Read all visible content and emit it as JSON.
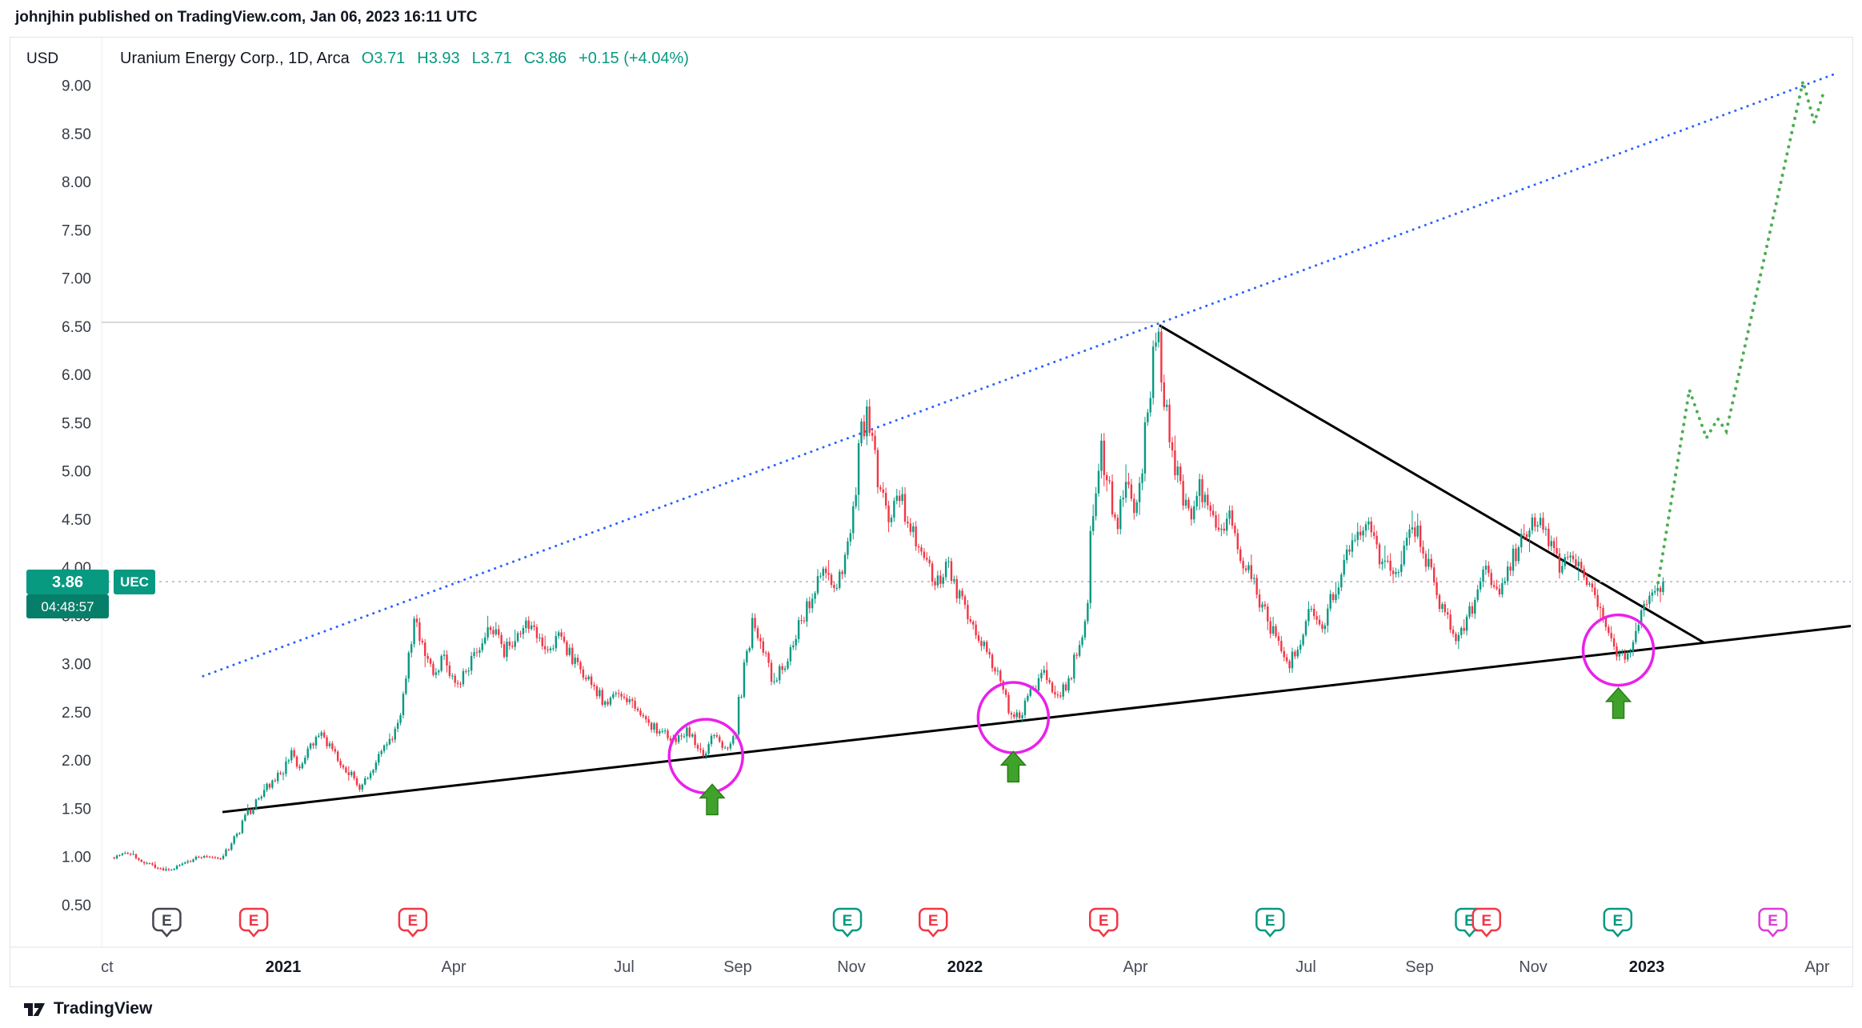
{
  "header": {
    "published_line": "johnjhin published on TradingView.com, Jan 06, 2023 16:11 UTC"
  },
  "legend": {
    "currency": "USD",
    "title": "Uranium Energy Corp., 1D, Arca",
    "open": "O3.71",
    "high": "H3.93",
    "low": "L3.71",
    "close": "C3.86",
    "change": "+0.15 (+4.04%)"
  },
  "price_scale": {
    "current_price": "3.86",
    "countdown": "04:48:57",
    "symbol_badge": "UEC"
  },
  "footer": {
    "brand": "TradingView"
  },
  "colors": {
    "up": "#089981",
    "down": "#f23645",
    "trend_blue": "#2962ff",
    "trend_black": "#000000",
    "peak_line": "#c9ccd3",
    "projection_green": "#4caf50",
    "circle_magenta": "#ea21ea",
    "arrow_green": "#3fa32b",
    "arrow_edge": "#2b7c16",
    "badge_teal": "#089981",
    "badge_teal_dark": "#077e6a",
    "axis_text": "#363a45",
    "month_text": "#4a4e59",
    "year_text": "#131722",
    "grid": "#e0e3eb",
    "price_line": "#b2b5be"
  },
  "chart_data": {
    "type": "candlestick",
    "title": "Uranium Energy Corp.",
    "symbol": "UEC",
    "exchange": "Arca",
    "interval": "1D",
    "currency": "USD",
    "last": {
      "o": 3.71,
      "h": 3.93,
      "l": 3.71,
      "c": 3.86,
      "change": "+0.15",
      "change_pct": "+4.04%"
    },
    "y_axis": {
      "min": 0.5,
      "max": 9.0,
      "step": 0.5
    },
    "current_price_line": 3.86,
    "x_labels": [
      {
        "label": "ct",
        "m": -0.1,
        "bold": false
      },
      {
        "label": "2021",
        "m": 3,
        "bold": true
      },
      {
        "label": "Apr",
        "m": 6,
        "bold": false
      },
      {
        "label": "Jul",
        "m": 9,
        "bold": false
      },
      {
        "label": "Sep",
        "m": 11,
        "bold": false
      },
      {
        "label": "Nov",
        "m": 13,
        "bold": false
      },
      {
        "label": "2022",
        "m": 15,
        "bold": true
      },
      {
        "label": "Apr",
        "m": 18,
        "bold": false
      },
      {
        "label": "Jul",
        "m": 21,
        "bold": false
      },
      {
        "label": "Sep",
        "m": 23,
        "bold": false
      },
      {
        "label": "Nov",
        "m": 25,
        "bold": false
      },
      {
        "label": "2023",
        "m": 27,
        "bold": true
      },
      {
        "label": "Apr",
        "m": 30,
        "bold": false
      }
    ],
    "price_path": [
      [
        0,
        1.0
      ],
      [
        0.25,
        1.06
      ],
      [
        0.5,
        0.97
      ],
      [
        0.8,
        0.88
      ],
      [
        1.05,
        0.86
      ],
      [
        1.3,
        0.95
      ],
      [
        1.6,
        1.02
      ],
      [
        1.9,
        0.98
      ],
      [
        2.1,
        1.12
      ],
      [
        2.4,
        1.45
      ],
      [
        2.6,
        1.6
      ],
      [
        2.8,
        1.78
      ],
      [
        3,
        1.88
      ],
      [
        3.15,
        2.1
      ],
      [
        3.3,
        1.92
      ],
      [
        3.5,
        2.12
      ],
      [
        3.7,
        2.28
      ],
      [
        3.9,
        2.1
      ],
      [
        4.1,
        1.95
      ],
      [
        4.35,
        1.72
      ],
      [
        4.6,
        1.92
      ],
      [
        4.85,
        2.18
      ],
      [
        5.05,
        2.35
      ],
      [
        5.2,
        2.85
      ],
      [
        5.35,
        3.52
      ],
      [
        5.5,
        3.12
      ],
      [
        5.7,
        2.88
      ],
      [
        5.85,
        3.08
      ],
      [
        6.05,
        2.78
      ],
      [
        6.3,
        2.98
      ],
      [
        6.5,
        3.22
      ],
      [
        6.7,
        3.38
      ],
      [
        6.9,
        3.12
      ],
      [
        7.1,
        3.28
      ],
      [
        7.3,
        3.42
      ],
      [
        7.5,
        3.3
      ],
      [
        7.7,
        3.15
      ],
      [
        7.9,
        3.32
      ],
      [
        8.1,
        3.05
      ],
      [
        8.4,
        2.82
      ],
      [
        8.7,
        2.6
      ],
      [
        9,
        2.72
      ],
      [
        9.3,
        2.46
      ],
      [
        9.6,
        2.32
      ],
      [
        9.9,
        2.22
      ],
      [
        10.15,
        2.32
      ],
      [
        10.4,
        2.05
      ],
      [
        10.6,
        2.26
      ],
      [
        10.8,
        2.12
      ],
      [
        11,
        2.35
      ],
      [
        11.15,
        3.05
      ],
      [
        11.3,
        3.48
      ],
      [
        11.5,
        3.12
      ],
      [
        11.65,
        2.82
      ],
      [
        11.85,
        3.02
      ],
      [
        12.05,
        3.32
      ],
      [
        12.3,
        3.68
      ],
      [
        12.55,
        3.96
      ],
      [
        12.75,
        3.76
      ],
      [
        12.95,
        4.12
      ],
      [
        13.1,
        4.95
      ],
      [
        13.3,
        5.75
      ],
      [
        13.5,
        4.92
      ],
      [
        13.7,
        4.45
      ],
      [
        13.85,
        4.82
      ],
      [
        14.05,
        4.42
      ],
      [
        14.25,
        4.15
      ],
      [
        14.5,
        3.82
      ],
      [
        14.7,
        4.06
      ],
      [
        14.9,
        3.72
      ],
      [
        15.1,
        3.52
      ],
      [
        15.35,
        3.22
      ],
      [
        15.6,
        2.92
      ],
      [
        15.8,
        2.55
      ],
      [
        16,
        2.44
      ],
      [
        16.2,
        2.72
      ],
      [
        16.4,
        2.96
      ],
      [
        16.6,
        2.62
      ],
      [
        16.8,
        2.78
      ],
      [
        17,
        3.12
      ],
      [
        17.15,
        3.62
      ],
      [
        17.3,
        4.6
      ],
      [
        17.4,
        5.42
      ],
      [
        17.55,
        4.78
      ],
      [
        17.7,
        4.38
      ],
      [
        17.85,
        4.88
      ],
      [
        18,
        4.62
      ],
      [
        18.15,
        5.12
      ],
      [
        18.3,
        5.92
      ],
      [
        18.42,
        6.52
      ],
      [
        18.55,
        5.72
      ],
      [
        18.7,
        5.12
      ],
      [
        18.85,
        4.72
      ],
      [
        19,
        4.48
      ],
      [
        19.15,
        4.82
      ],
      [
        19.35,
        4.52
      ],
      [
        19.55,
        4.3
      ],
      [
        19.7,
        4.56
      ],
      [
        19.9,
        4.12
      ],
      [
        20.1,
        3.82
      ],
      [
        20.3,
        3.55
      ],
      [
        20.5,
        3.22
      ],
      [
        20.7,
        2.98
      ],
      [
        20.9,
        3.25
      ],
      [
        21.1,
        3.55
      ],
      [
        21.3,
        3.35
      ],
      [
        21.55,
        3.8
      ],
      [
        21.8,
        4.25
      ],
      [
        22.1,
        4.5
      ],
      [
        22.35,
        4.1
      ],
      [
        22.6,
        3.92
      ],
      [
        22.8,
        4.35
      ],
      [
        23,
        4.42
      ],
      [
        23.2,
        3.95
      ],
      [
        23.45,
        3.55
      ],
      [
        23.7,
        3.28
      ],
      [
        23.95,
        3.6
      ],
      [
        24.2,
        4.02
      ],
      [
        24.45,
        3.72
      ],
      [
        24.7,
        4.15
      ],
      [
        24.95,
        4.42
      ],
      [
        25.1,
        4.5
      ],
      [
        25.3,
        4.28
      ],
      [
        25.5,
        3.98
      ],
      [
        25.7,
        4.12
      ],
      [
        25.9,
        3.88
      ],
      [
        26.1,
        3.68
      ],
      [
        26.3,
        3.45
      ],
      [
        26.5,
        3.1
      ],
      [
        26.65,
        3.05
      ],
      [
        26.8,
        3.32
      ],
      [
        27,
        3.58
      ],
      [
        27.15,
        3.72
      ],
      [
        27.3,
        3.86
      ]
    ],
    "trendlines": [
      {
        "name": "upper-channel",
        "style": "dotted",
        "color": "#2962ff",
        "width": 3,
        "from": [
          1.59,
          2.88
        ],
        "to": [
          30.28,
          9.12
        ]
      },
      {
        "name": "ascending-support",
        "style": "solid",
        "color": "#000000",
        "width": 3,
        "from": [
          1.93,
          1.47
        ],
        "to": [
          30.6,
          3.4
        ]
      },
      {
        "name": "descending-resistance",
        "style": "solid",
        "color": "#000000",
        "width": 3,
        "from": [
          18.42,
          6.52
        ],
        "to": [
          28.0,
          3.23
        ]
      },
      {
        "name": "peak-horizontal",
        "style": "solid",
        "color": "#c9ccd3",
        "width": 1.5,
        "from": [
          -0.2,
          6.55
        ],
        "to": [
          18.42,
          6.55
        ]
      }
    ],
    "projection": {
      "style": "dotted",
      "color": "#4caf50",
      "points": [
        [
          27.2,
          3.85
        ],
        [
          27.75,
          5.85
        ],
        [
          28.05,
          5.35
        ],
        [
          28.25,
          5.55
        ],
        [
          28.4,
          5.42
        ],
        [
          29.75,
          9.05
        ],
        [
          29.95,
          8.62
        ],
        [
          30.12,
          8.95
        ]
      ]
    },
    "circles": [
      {
        "m": 10.44,
        "p": 2.05,
        "r": 46
      },
      {
        "m": 15.85,
        "p": 2.45,
        "r": 44
      },
      {
        "m": 26.5,
        "p": 3.15,
        "r": 44
      }
    ],
    "arrows": [
      {
        "m": 10.55,
        "p": 1.6
      },
      {
        "m": 15.85,
        "p": 1.94
      },
      {
        "m": 26.5,
        "p": 2.6
      }
    ],
    "earnings": [
      {
        "m": 0.95,
        "color": "#434651"
      },
      {
        "m": 2.48,
        "color": "#f23645"
      },
      {
        "m": 5.28,
        "color": "#f23645"
      },
      {
        "m": 12.93,
        "color": "#089981"
      },
      {
        "m": 14.44,
        "color": "#f23645"
      },
      {
        "m": 17.44,
        "color": "#f23645"
      },
      {
        "m": 20.37,
        "color": "#089981"
      },
      {
        "m": 23.88,
        "color": "#089981"
      },
      {
        "m": 24.18,
        "color": "#f23645"
      },
      {
        "m": 26.49,
        "color": "#089981"
      },
      {
        "m": 29.22,
        "color": "#db3cd6"
      }
    ]
  }
}
